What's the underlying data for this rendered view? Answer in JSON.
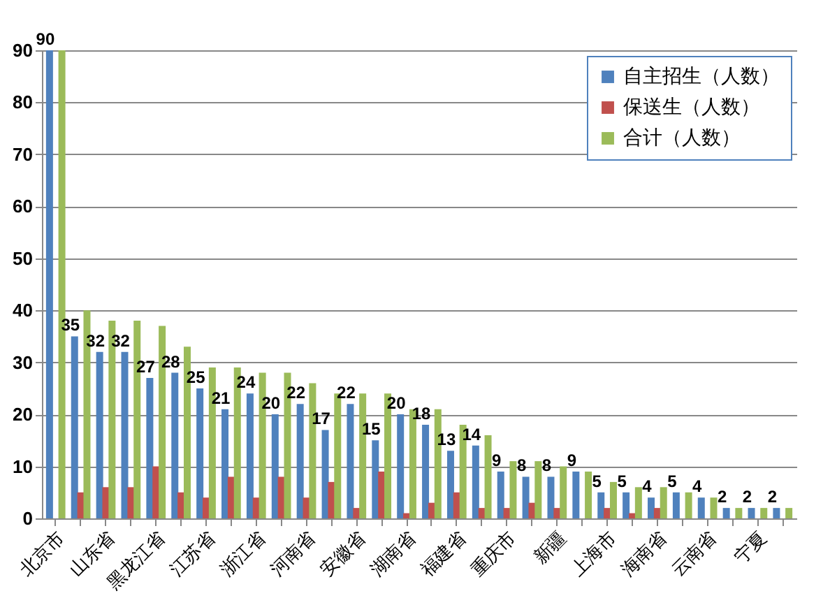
{
  "chart_data": {
    "type": "bar",
    "categories": [
      "北京市",
      null,
      "山东省",
      null,
      "黑龙江省",
      null,
      "江苏省",
      null,
      "浙江省",
      null,
      "河南省",
      null,
      "安徽省",
      null,
      "湖南省",
      null,
      "福建省",
      null,
      "重庆市",
      null,
      "新疆",
      null,
      "上海市",
      null,
      "海南省",
      null,
      "云南省",
      null,
      "宁夏",
      null
    ],
    "series": [
      {
        "name": "自主招生（人数）",
        "color": "#4f81bd",
        "values": [
          90,
          35,
          32,
          32,
          27,
          28,
          25,
          21,
          24,
          20,
          22,
          17,
          22,
          15,
          20,
          18,
          13,
          14,
          9,
          8,
          8,
          9,
          5,
          5,
          4,
          5,
          4,
          2,
          2,
          2
        ],
        "value_labels": [
          "90",
          "35",
          "32",
          "32",
          "27",
          "28",
          "25",
          "21",
          "24",
          "20",
          "22",
          "17",
          "22",
          "15",
          "20",
          "18",
          "13",
          "14",
          "9",
          "8",
          "8",
          "9",
          "5",
          "5",
          "4",
          "5",
          "4",
          "2",
          "2",
          "2"
        ]
      },
      {
        "name": "保送生（人数）",
        "color": "#c0504d",
        "values": [
          0,
          5,
          6,
          6,
          10,
          5,
          4,
          8,
          4,
          8,
          4,
          7,
          2,
          9,
          1,
          3,
          5,
          2,
          2,
          3,
          2,
          0,
          2,
          1,
          2,
          0,
          0,
          0,
          0,
          0
        ]
      },
      {
        "name": "合计（人数）",
        "color": "#9bbb59",
        "values": [
          90,
          40,
          38,
          38,
          37,
          33,
          29,
          29,
          28,
          28,
          26,
          24,
          24,
          24,
          21,
          21,
          18,
          16,
          11,
          11,
          10,
          9,
          7,
          6,
          6,
          5,
          4,
          2,
          2,
          2
        ]
      }
    ],
    "ylim": [
      0,
      90
    ],
    "yticks": [
      0,
      10,
      20,
      30,
      40,
      50,
      60,
      70,
      80,
      90
    ],
    "grid": "y",
    "legend": "top right"
  }
}
